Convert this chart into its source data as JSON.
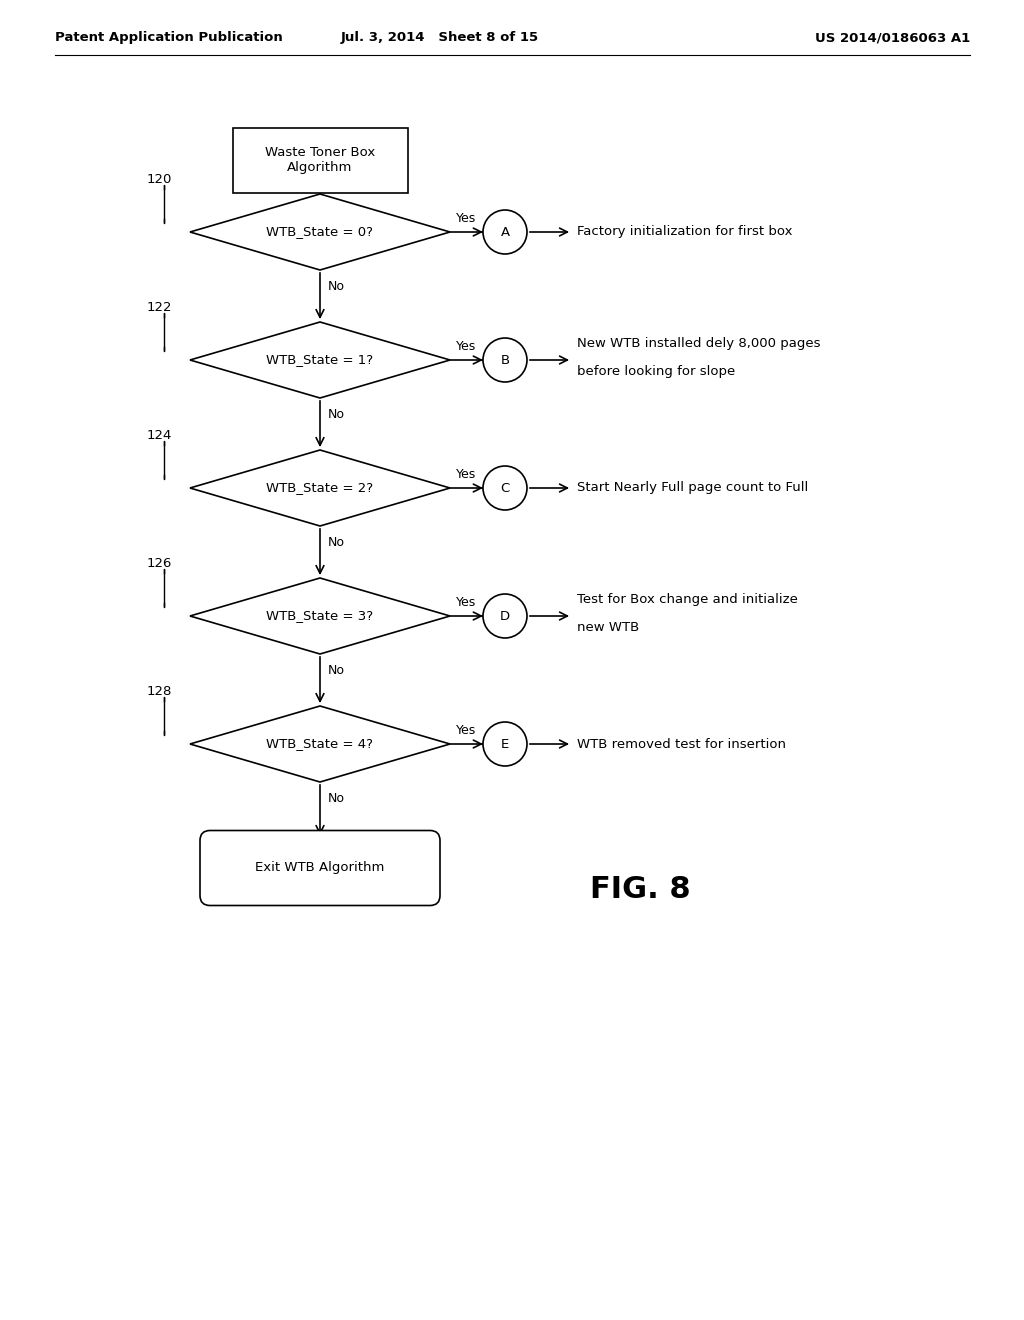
{
  "bg_color": "#ffffff",
  "header_left": "Patent Application Publication",
  "header_center": "Jul. 3, 2014   Sheet 8 of 15",
  "header_right": "US 2014/0186063 A1",
  "fig_label": "FIG. 8",
  "start_box_text": "Waste Toner Box\nAlgorithm",
  "exit_box_text": "Exit WTB Algorithm",
  "diamonds": [
    {
      "label": "120",
      "text": "WTB_State = 0?",
      "yes_label": "A",
      "yes_desc": "Factory initialization for first box",
      "yes_desc2": ""
    },
    {
      "label": "122",
      "text": "WTB_State = 1?",
      "yes_label": "B",
      "yes_desc": "New WTB installed dely 8,000 pages",
      "yes_desc2": "before looking for slope"
    },
    {
      "label": "124",
      "text": "WTB_State = 2?",
      "yes_label": "C",
      "yes_desc": "Start Nearly Full page count to Full",
      "yes_desc2": ""
    },
    {
      "label": "126",
      "text": "WTB_State = 3?",
      "yes_label": "D",
      "yes_desc": "Test for Box change and initialize",
      "yes_desc2": "new WTB"
    },
    {
      "label": "128",
      "text": "WTB_State = 4?",
      "yes_label": "E",
      "yes_desc": "WTB removed test for insertion",
      "yes_desc2": ""
    }
  ],
  "font_size_header": 9.5,
  "font_size_body": 9.5,
  "font_size_fig": 22,
  "line_color": "#000000",
  "text_color": "#000000"
}
